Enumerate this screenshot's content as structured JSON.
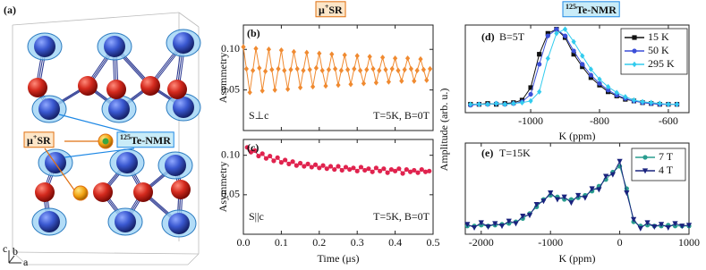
{
  "structure": {
    "label": "(a)",
    "mu_sr": [
      {
        "text": "μ"
      },
      {
        "text": "+",
        "sup": true
      },
      {
        "text": "SR"
      }
    ],
    "nmr": [
      {
        "text": "125",
        "sup": true
      },
      {
        "text": "Te-NMR"
      }
    ],
    "axes": [
      "b",
      "c",
      "a"
    ]
  },
  "chart_data": [
    {
      "type": "line",
      "label": "(b)",
      "title": [
        {
          "text": "μ"
        },
        {
          "text": "+",
          "sup": true
        },
        {
          "text": "SR"
        }
      ],
      "title_color": "#e07010",
      "title_fill": "#fde6c8",
      "ylabel": "Asymmetry",
      "annotations": [
        "S⊥c",
        "T=5K, B=0T"
      ],
      "x": [
        0,
        0.008,
        0.017,
        0.025,
        0.033,
        0.042,
        0.05,
        0.058,
        0.067,
        0.075,
        0.083,
        0.092,
        0.1,
        0.108,
        0.117,
        0.125,
        0.133,
        0.142,
        0.15,
        0.158,
        0.167,
        0.175,
        0.183,
        0.192,
        0.2,
        0.208,
        0.217,
        0.225,
        0.233,
        0.242,
        0.25,
        0.258,
        0.267,
        0.275,
        0.283,
        0.292,
        0.3,
        0.308,
        0.317,
        0.325,
        0.333,
        0.342,
        0.35,
        0.358,
        0.367,
        0.375,
        0.383,
        0.392,
        0.4,
        0.408,
        0.417,
        0.425,
        0.433,
        0.442,
        0.45,
        0.458,
        0.467,
        0.475,
        0.483,
        0.492
      ],
      "series": [
        {
          "color": "#f08a30",
          "marker": "diamond",
          "values": [
            0.103,
            0.076,
            0.047,
            0.074,
            0.101,
            0.077,
            0.049,
            0.073,
            0.1,
            0.075,
            0.05,
            0.076,
            0.099,
            0.074,
            0.051,
            0.075,
            0.097,
            0.076,
            0.053,
            0.074,
            0.096,
            0.075,
            0.054,
            0.077,
            0.095,
            0.074,
            0.055,
            0.075,
            0.094,
            0.076,
            0.056,
            0.074,
            0.093,
            0.075,
            0.057,
            0.076,
            0.092,
            0.074,
            0.058,
            0.075,
            0.091,
            0.076,
            0.059,
            0.074,
            0.09,
            0.075,
            0.06,
            0.076,
            0.089,
            0.074,
            0.061,
            0.075,
            0.089,
            0.076,
            0.061,
            0.074,
            0.088,
            0.075,
            0.062,
            0.076
          ]
        }
      ],
      "xlim": [
        0,
        0.5
      ],
      "ylim": [
        0,
        0.13
      ],
      "xticks": [
        {
          "value": 0,
          "label": "0.0"
        },
        0.1,
        0.2,
        0.3,
        0.4,
        0.5
      ],
      "xtick_labels": false,
      "yticks": [
        0.05,
        {
          "value": 0.1,
          "label": "0.10"
        }
      ]
    },
    {
      "type": "line",
      "label": "(c)",
      "ylabel": "Asymmetry",
      "xlabel": "Time (μs)",
      "annotations": [
        "S||c",
        "T=5K, B=0T"
      ],
      "x": [
        0.01,
        0.02,
        0.03,
        0.04,
        0.05,
        0.06,
        0.07,
        0.08,
        0.09,
        0.1,
        0.11,
        0.12,
        0.13,
        0.14,
        0.15,
        0.16,
        0.17,
        0.18,
        0.19,
        0.2,
        0.21,
        0.22,
        0.23,
        0.24,
        0.25,
        0.26,
        0.27,
        0.28,
        0.29,
        0.3,
        0.31,
        0.32,
        0.33,
        0.34,
        0.35,
        0.36,
        0.37,
        0.38,
        0.39,
        0.4,
        0.41,
        0.42,
        0.43,
        0.44,
        0.45,
        0.46,
        0.47,
        0.48,
        0.49
      ],
      "series": [
        {
          "color": "#e0234e",
          "marker": "circle",
          "values": [
            0.11,
            0.104,
            0.106,
            0.099,
            0.102,
            0.096,
            0.099,
            0.093,
            0.097,
            0.091,
            0.094,
            0.089,
            0.092,
            0.087,
            0.09,
            0.086,
            0.089,
            0.085,
            0.088,
            0.084,
            0.087,
            0.083,
            0.086,
            0.082,
            0.086,
            0.081,
            0.085,
            0.082,
            0.084,
            0.08,
            0.085,
            0.081,
            0.083,
            0.079,
            0.084,
            0.08,
            0.083,
            0.078,
            0.082,
            0.08,
            0.083,
            0.077,
            0.082,
            0.079,
            0.081,
            0.078,
            0.082,
            0.079,
            0.08
          ]
        }
      ],
      "xlim": [
        0,
        0.5
      ],
      "ylim": [
        0,
        0.12
      ],
      "xticks": [
        {
          "value": 0,
          "label": "0.0"
        },
        0.1,
        0.2,
        0.3,
        0.4,
        0.5
      ],
      "yticks": [
        0.05,
        {
          "value": 0.1,
          "label": "0.10"
        }
      ]
    },
    {
      "type": "line",
      "label": "(d)",
      "title": [
        {
          "text": "125",
          "sup": true
        },
        {
          "text": "Te-NMR"
        }
      ],
      "title_color": "#1e88e5",
      "title_fill": "#c9ecf8",
      "ylabel": "Amplitude (arb. u.)",
      "xlabel": "K (ppm)",
      "annotations": [
        "B=5T"
      ],
      "x": [
        -1175,
        -1150,
        -1125,
        -1100,
        -1075,
        -1050,
        -1025,
        -1000,
        -975,
        -950,
        -925,
        -900,
        -875,
        -850,
        -825,
        -800,
        -775,
        -750,
        -725,
        -700,
        -675,
        -650,
        -625,
        -600,
        -575
      ],
      "series": [
        {
          "name": "15 K",
          "color": "#111111",
          "marker": "square",
          "values": [
            0.1,
            0.1,
            0.11,
            0.1,
            0.11,
            0.12,
            0.15,
            0.3,
            0.7,
            0.95,
            1.0,
            0.9,
            0.7,
            0.55,
            0.42,
            0.33,
            0.25,
            0.2,
            0.16,
            0.14,
            0.12,
            0.11,
            0.1,
            0.1,
            0.1
          ]
        },
        {
          "name": "50 K",
          "color": "#3b4fd8",
          "marker": "circle",
          "values": [
            0.09,
            0.1,
            0.1,
            0.11,
            0.1,
            0.11,
            0.13,
            0.22,
            0.58,
            0.92,
            1.0,
            0.92,
            0.74,
            0.58,
            0.45,
            0.35,
            0.27,
            0.21,
            0.17,
            0.14,
            0.12,
            0.11,
            0.1,
            0.1,
            0.1
          ]
        },
        {
          "name": "295 K",
          "color": "#33ccee",
          "marker": "diamond",
          "values": [
            0.1,
            0.1,
            0.1,
            0.11,
            0.1,
            0.11,
            0.12,
            0.14,
            0.25,
            0.65,
            0.95,
            1.0,
            0.85,
            0.68,
            0.52,
            0.4,
            0.31,
            0.24,
            0.19,
            0.15,
            0.13,
            0.12,
            0.11,
            0.1,
            0.1
          ]
        }
      ],
      "xlim": [
        -1190,
        -540
      ],
      "ylim": [
        0,
        1.05
      ],
      "xticks": [
        -1000,
        -800,
        -600
      ]
    },
    {
      "type": "line",
      "label": "(e)",
      "xlabel": "K (ppm)",
      "annotations": [
        "T=15K"
      ],
      "x": [
        -2200,
        -2100,
        -2000,
        -1900,
        -1800,
        -1700,
        -1600,
        -1500,
        -1400,
        -1300,
        -1200,
        -1100,
        -1000,
        -900,
        -800,
        -700,
        -600,
        -500,
        -400,
        -300,
        -200,
        -100,
        0,
        100,
        200,
        300,
        400,
        500,
        600,
        700,
        800,
        900,
        1000
      ],
      "series": [
        {
          "name": "7 T",
          "color": "#2a9d8f",
          "marker": "circle",
          "values": [
            0.1,
            0.1,
            0.11,
            0.1,
            0.11,
            0.12,
            0.13,
            0.15,
            0.19,
            0.25,
            0.33,
            0.42,
            0.47,
            0.45,
            0.42,
            0.42,
            0.44,
            0.47,
            0.52,
            0.58,
            0.66,
            0.75,
            0.82,
            0.55,
            0.15,
            0.1,
            0.11,
            0.1,
            0.1,
            0.11,
            0.1,
            0.1,
            0.1
          ]
        },
        {
          "name": "4 T",
          "color": "#1a237e",
          "marker": "triangle",
          "values": [
            0.12,
            0.08,
            0.14,
            0.09,
            0.13,
            0.1,
            0.16,
            0.13,
            0.22,
            0.23,
            0.36,
            0.4,
            0.5,
            0.42,
            0.45,
            0.38,
            0.47,
            0.44,
            0.55,
            0.54,
            0.7,
            0.72,
            0.88,
            0.5,
            0.18,
            0.07,
            0.14,
            0.09,
            0.12,
            0.08,
            0.13,
            0.1,
            0.11
          ]
        }
      ],
      "xlim": [
        -2230,
        1000
      ],
      "ylim": [
        0,
        1.1
      ],
      "xticks": [
        -2000,
        -1000,
        0,
        1000
      ]
    }
  ]
}
